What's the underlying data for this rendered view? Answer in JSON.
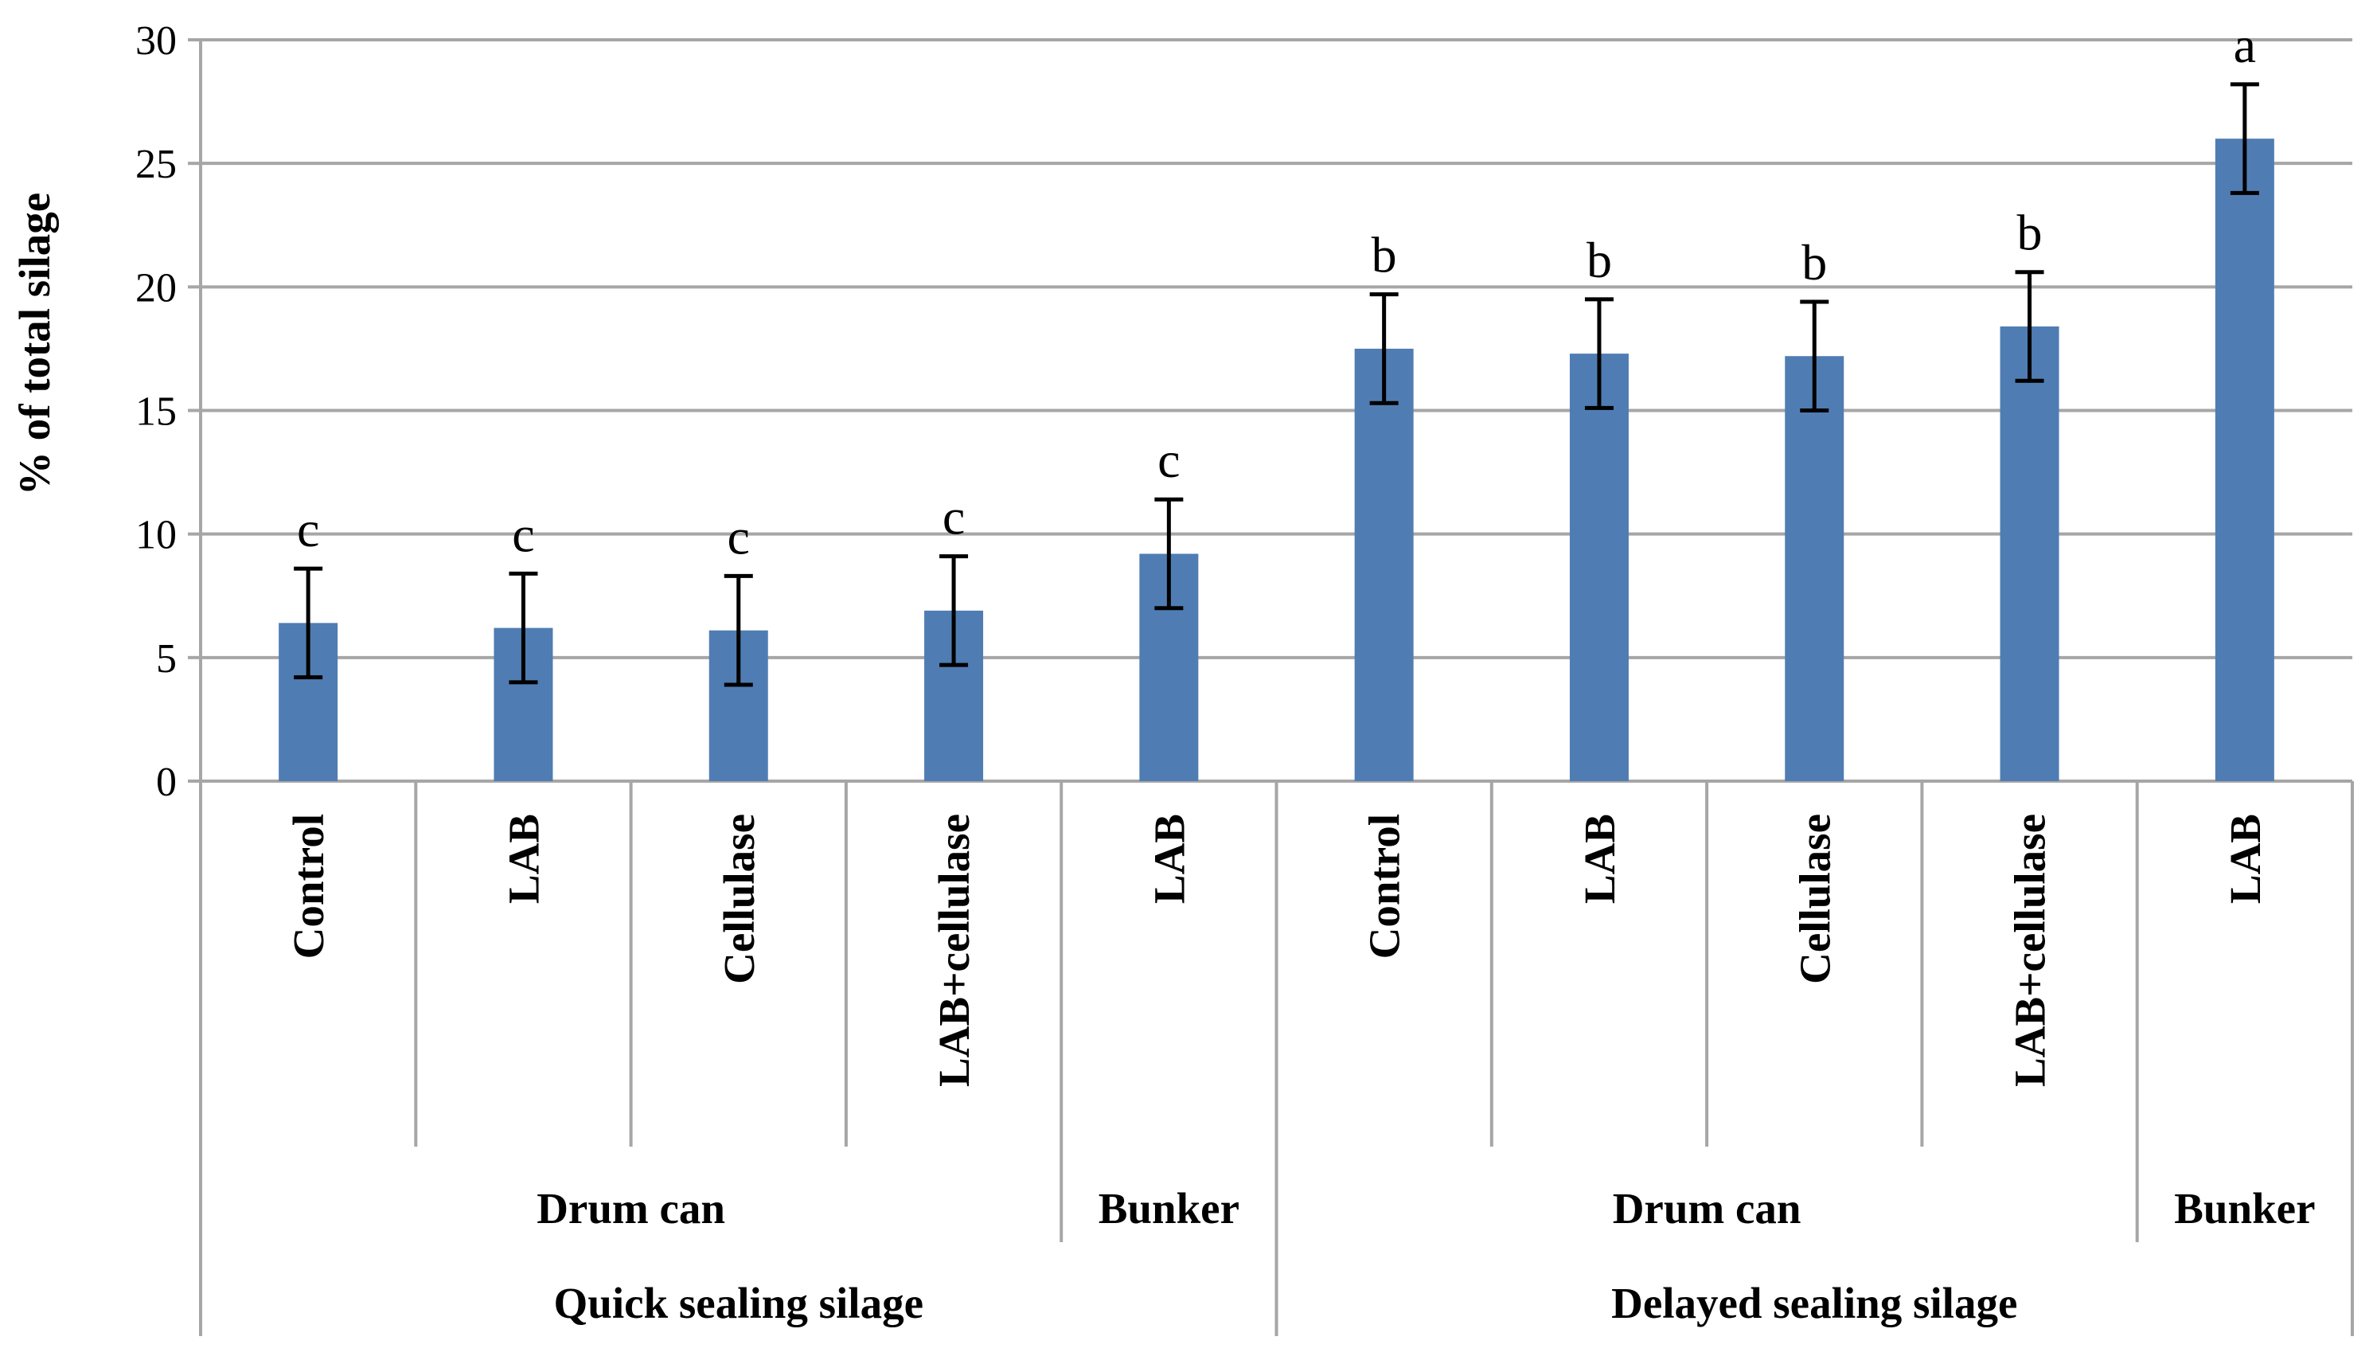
{
  "chart_data": {
    "type": "bar",
    "ylabel": "% of total silage",
    "ylim": [
      0,
      30
    ],
    "yticks": [
      "0",
      "5",
      "10",
      "15",
      "20",
      "25",
      "30"
    ],
    "grid": true,
    "bar_color": "#4f7db3",
    "categories": [
      "Control",
      "LAB",
      "Cellulase",
      "LAB+cellulase",
      "LAB",
      "Control",
      "LAB",
      "Cellulase",
      "LAB+cellulase",
      "LAB"
    ],
    "values": [
      6.4,
      6.2,
      6.1,
      6.9,
      9.2,
      17.5,
      17.3,
      17.2,
      18.4,
      26.0
    ],
    "errors": [
      2.2,
      2.2,
      2.2,
      2.2,
      2.2,
      2.2,
      2.2,
      2.2,
      2.2,
      2.2
    ],
    "significance": [
      "c",
      "c",
      "c",
      "c",
      "c",
      "b",
      "b",
      "b",
      "b",
      "a"
    ],
    "subgroups": [
      {
        "label": "Drum can",
        "span": 4
      },
      {
        "label": "Bunker",
        "span": 1
      },
      {
        "label": "Drum can",
        "span": 4
      },
      {
        "label": "Bunker",
        "span": 1
      }
    ],
    "groups": [
      {
        "label": "Quick sealing silage",
        "span": 5
      },
      {
        "label": "Delayed sealing silage",
        "span": 5
      }
    ]
  }
}
